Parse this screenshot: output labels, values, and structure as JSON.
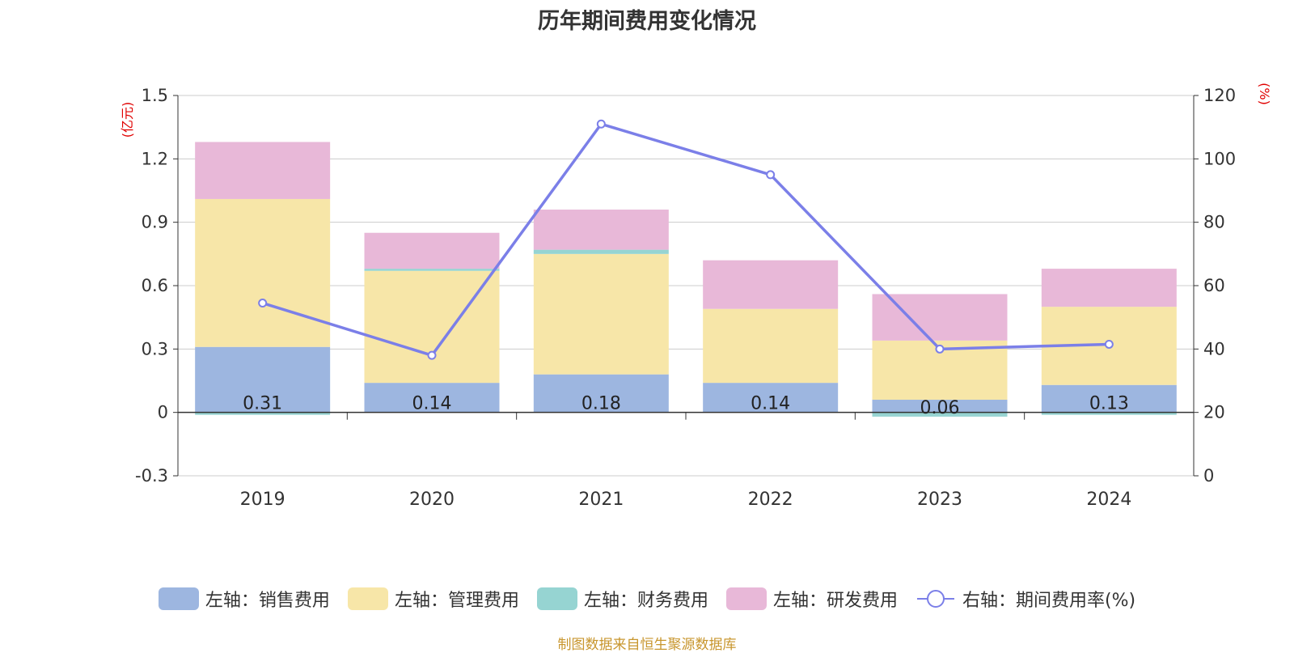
{
  "chart_title": "历年期间费用变化情况",
  "source_note": "制图数据来自恒生聚源数据库",
  "chart_data": {
    "type": "bar",
    "stacked": true,
    "title": "历年期间费用变化情况",
    "categories": [
      "2019",
      "2020",
      "2021",
      "2022",
      "2023",
      "2024"
    ],
    "left_axis": {
      "unit": "(亿元)",
      "ticks": [
        "-0.3",
        "0",
        "0.3",
        "0.6",
        "0.9",
        "1.2",
        "1.5"
      ],
      "min": -0.3,
      "max": 1.5
    },
    "right_axis": {
      "unit": "(%)",
      "ticks": [
        "0",
        "20",
        "40",
        "60",
        "80",
        "100",
        "120"
      ],
      "min": 0,
      "max": 120
    },
    "series": [
      {
        "name": "左轴：销售费用",
        "axis": "left",
        "color": "#9db6e0",
        "values": [
          0.31,
          0.14,
          0.18,
          0.14,
          0.06,
          0.13
        ],
        "labels": [
          "0.31",
          "0.14",
          "0.18",
          "0.14",
          "0.06",
          "0.13"
        ]
      },
      {
        "name": "左轴：管理费用",
        "axis": "left",
        "color": "#f7e6a8",
        "values": [
          0.7,
          0.53,
          0.57,
          0.35,
          0.28,
          0.37
        ]
      },
      {
        "name": "左轴：财务费用",
        "axis": "left",
        "color": "#96d4d2",
        "values": [
          -0.005,
          0.01,
          0.02,
          0.0,
          -0.02,
          -0.005
        ]
      },
      {
        "name": "左轴：研发费用",
        "axis": "left",
        "color": "#e8b8d8",
        "values": [
          0.27,
          0.17,
          0.19,
          0.23,
          0.22,
          0.18
        ]
      },
      {
        "name": "右轴：期间费用率(%)",
        "axis": "right",
        "type": "line",
        "color": "#7b7fe8",
        "values": [
          54.5,
          38,
          111,
          95,
          40,
          41.5
        ]
      }
    ],
    "grid": true,
    "legend_position": "bottom"
  }
}
